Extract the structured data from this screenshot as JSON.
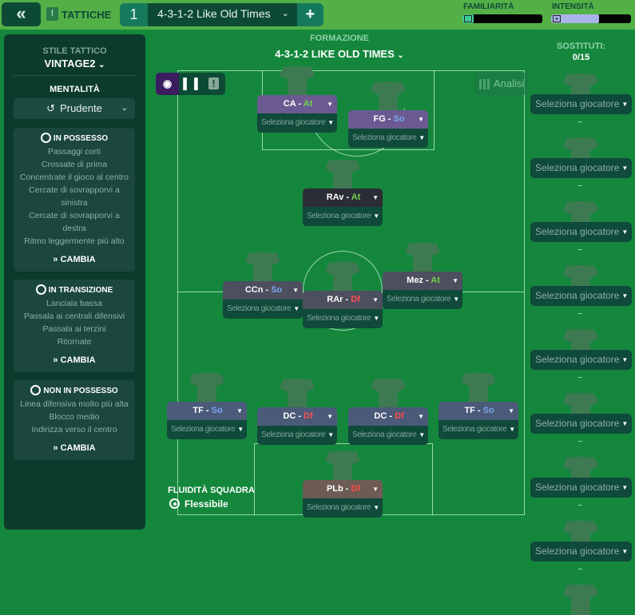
{
  "topbar": {
    "back_icon": "double-chevron-left-icon",
    "section_label": "TATTICHE",
    "tactic_number": "1",
    "tactic_name": "4-3-1-2 Like Old Times",
    "add_icon": "plus-icon",
    "familiarity_label": "FAMILIARITÀ",
    "familiarity_level": 0.03,
    "intensity_label": "INTENSITÀ",
    "intensity_level": 0.6,
    "colors": {
      "bar": "#53b047",
      "familiarity_fill": "#3fd19a",
      "intensity_fill": "#a8b4ea"
    }
  },
  "sidebar": {
    "style_label": "STILE TATTICO",
    "style_value": "VINTAGE2",
    "mentality_label": "MENTALITÀ",
    "mentality_value": "Prudente",
    "sections": [
      {
        "title": "IN POSSESSO",
        "icon": "ball-icon",
        "items": [
          "Passaggi corti",
          "Crossate di prima",
          "Concentrate il gioco al centro",
          "Cercate di sovrapporvi a sinistra",
          "Cercate di sovrapporvi a destra",
          "Ritmo leggermente più alto"
        ],
        "action": "CAMBIA"
      },
      {
        "title": "IN TRANSIZIONE",
        "icon": "transition-icon",
        "items": [
          "Lanciala bassa",
          "Passala ai centrali difensivi",
          "Passala ai terzini",
          "Ritornate"
        ],
        "action": "CAMBIA"
      },
      {
        "title": "NON IN POSSESSO",
        "icon": "ball-outline-icon",
        "items": [
          "Linea difensiva molto più alta",
          "Blocco medio",
          "Indirizza verso il centro"
        ],
        "action": "CAMBIA"
      }
    ]
  },
  "formation": {
    "label": "FORMAZIONE",
    "value": "4-3-1-2 LIKE OLD TIMES",
    "analysis_label": "Analisi",
    "select_placeholder": "Seleziona giocatore",
    "players": [
      {
        "role": "CA",
        "duty": "At",
        "color": "#6b5a91"
      },
      {
        "role": "FG",
        "duty": "So",
        "color": "#6b5a91"
      },
      {
        "role": "RAv",
        "duty": "At",
        "color": "#2b2d36"
      },
      {
        "role": "CCn",
        "duty": "So",
        "color": "#4d4e5e"
      },
      {
        "role": "RAr",
        "duty": "Df",
        "color": "#4d4e5e"
      },
      {
        "role": "Mez",
        "duty": "At",
        "color": "#4d4e5e"
      },
      {
        "role": "TF",
        "duty": "So",
        "color": "#4a5a78"
      },
      {
        "role": "DC",
        "duty": "Df",
        "color": "#4a5a78"
      },
      {
        "role": "DC",
        "duty": "Df",
        "color": "#4a5a78"
      },
      {
        "role": "TF",
        "duty": "So",
        "color": "#4a5a78"
      },
      {
        "role": "PLb",
        "duty": "Df",
        "color": "#6e5b54"
      }
    ],
    "duty_colors": {
      "At": "#6fd24a",
      "So": "#7aa7f0",
      "Df": "#ff4d4d"
    },
    "fluidity_label": "FLUIDITÀ SQUADRA",
    "fluidity_value": "Flessibile"
  },
  "substitutes": {
    "label": "SOSTITUTI:",
    "count": "0/15",
    "select_placeholder": "Seleziona giocatore",
    "slots_visible": 8
  }
}
